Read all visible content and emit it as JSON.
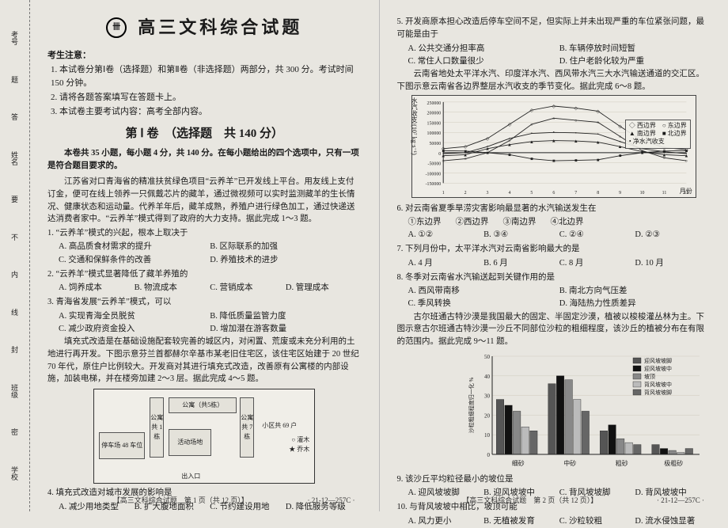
{
  "binding": {
    "labels": [
      "考号",
      "题",
      "答",
      "姓名",
      "要",
      "不",
      "内",
      "线",
      "封",
      "班级",
      "密",
      "学校"
    ]
  },
  "header": {
    "logo_text": "卌",
    "main_title": "高三文科综合试题"
  },
  "notice": {
    "head": "考生注意：",
    "items": [
      "1. 本试卷分第Ⅰ卷（选择题）和第Ⅱ卷（非选择题）两部分，共 300 分。考试时间 150 分钟。",
      "2. 请将各题答案填写在答题卡上。",
      "3. 本试卷主要考试内容：高考全部内容。"
    ]
  },
  "section1": {
    "title": "第 Ⅰ 卷　（选择题　共 140 分）",
    "intro": "本卷共 35 小题，每小题 4 分，共 140 分。在每小题给出的四个选项中，只有一项是符合题目要求的。"
  },
  "passage1": "江苏省对口青海省的精准扶贫绿色项目“云养羊”已开发线上平台。用友线上支付订金，便可在线上领养一只佩戴芯片的藏羊，通过微视频可以实时监测藏羊的生长情况、健康状态和运动量。代养羊年后，藏羊成熟，养殖户进行绿色加工，通过快递送达消费者家中。“云养羊”模式得到了政府的大力支持。据此完成 1～3 题。",
  "q1": {
    "text": "1. “云养羊”模式的兴起，根本上取决于",
    "opts": [
      "A. 高品质食材需求的提升",
      "B. 区际联系的加强",
      "C. 交通和保鲜条件的改善",
      "D. 养殖技术的进步"
    ]
  },
  "q2": {
    "text": "2. “云养羊”模式显著降低了藏羊养殖的",
    "opts": [
      "A. 饲养成本",
      "B. 物流成本",
      "C. 营销成本",
      "D. 管理成本"
    ]
  },
  "q3": {
    "text": "3. 青海省发展“云养羊”模式，可以",
    "opts": [
      "A. 实现青海全员脱贫",
      "B. 降低质量监管力度",
      "C. 减少政府资金投入",
      "D. 增加潜在游客数量"
    ]
  },
  "passage2": "填充式改造是在基础设施配套较完善的城区内，对闲置、荒废或未充分利用的土地进行再开发。下图示意芬兰首都赫尔辛基市某老旧住宅区，该住宅区始建于 20 世纪 70 年代，原住户比例较大。开发商对其进行填充式改造，改善原有公寓楼的内部设施，加装电梯，并在楼旁加建 2～3 层。据此完成 4～5 题。",
  "map": {
    "blocks": {
      "busstop": "停车场\n48 车位",
      "apt1": "公寓\n共\n1\n栋",
      "play": "活动场地",
      "apt2": "公寓（共5栋）",
      "apt3": "公寓\n共\n7\n栋",
      "info": "小区共 69 户"
    },
    "legend": [
      "○ 灌木",
      "★ 乔木"
    ],
    "inout": "出入口"
  },
  "q4": {
    "text": "4. 填充式改造对城市发展的影响是",
    "opts": [
      "A. 减少用地类型",
      "B. 扩大腹地面积",
      "C. 节约建设用地",
      "D. 降低服务等级"
    ]
  },
  "q5": {
    "text": "5. 开发商原本担心改造后停车空间不足，但实际上并未出现严重的车位紧张问题，最可能是由于",
    "opts": [
      "A. 公共交通分担率高",
      "B. 车辆停放时间短暂",
      "C. 常住人口数量很少",
      "D. 住户老龄化较为严重"
    ]
  },
  "passage3": "云南省地处太平洋水汽、印度洋水汽、西风带水汽三大水汽输送通道的交汇区。下图示意云南省各边界整层水汽收支的季节变化。据此完成 6～8 题。",
  "linechart": {
    "ylabel": "水汽收支/(10⁷ kg·s⁻¹)",
    "xlabel": "月份",
    "ylim": [
      -150000,
      250000
    ],
    "yticks": [
      -150000,
      -100000,
      -50000,
      0,
      50000,
      100000,
      150000,
      200000,
      250000
    ],
    "xticks": [
      1,
      2,
      3,
      4,
      5,
      6,
      7,
      8,
      9,
      10,
      11,
      12
    ],
    "series": [
      {
        "name": "西边界",
        "marker": "diamond",
        "values": [
          20000,
          30000,
          70000,
          140000,
          210000,
          230000,
          220000,
          205000,
          130000,
          60000,
          25000,
          15000
        ]
      },
      {
        "name": "东边界",
        "marker": "circle-open",
        "values": [
          -40000,
          -30000,
          0,
          60000,
          140000,
          170000,
          160000,
          150000,
          80000,
          10000,
          -25000,
          -40000
        ]
      },
      {
        "name": "南边界",
        "marker": "triangle",
        "values": [
          -15000,
          -10000,
          20000,
          40000,
          55000,
          60000,
          58000,
          52000,
          30000,
          5000,
          -10000,
          -15000
        ]
      },
      {
        "name": "北边界",
        "marker": "square",
        "values": [
          10000,
          8000,
          0,
          -10000,
          -30000,
          -40000,
          -38000,
          -35000,
          -15000,
          0,
          8000,
          10000
        ]
      },
      {
        "name": "净水汽收支",
        "marker": "dot",
        "values": [
          -5000,
          0,
          30000,
          70000,
          95000,
          100000,
          98000,
          92000,
          55000,
          20000,
          5000,
          -5000
        ]
      }
    ],
    "line_color": "#222",
    "grid_color": "#cfcabd",
    "background": "#efede7"
  },
  "q6": {
    "text": "6. 对云南省夏季旱涝灾害影响最显著的水汽输送发生在",
    "circled": [
      "①东边界",
      "②西边界",
      "③南边界",
      "④北边界"
    ],
    "opts": [
      "A. ①②",
      "B. ③④",
      "C. ②④",
      "D. ②③"
    ]
  },
  "q7": {
    "text": "7. 下列月份中，太平洋水汽对云南省影响最大的是",
    "opts": [
      "A. 4 月",
      "B. 6 月",
      "C. 8 月",
      "D. 10 月"
    ]
  },
  "q8": {
    "text": "8. 冬季对云南省水汽输送起到关键作用的是",
    "opts": [
      "A. 西风带南移",
      "B. 南北方向气压差",
      "C. 季风转换",
      "D. 海陆热力性质差异"
    ]
  },
  "passage4": "古尔班通古特沙漠是我国最大的固定、半固定沙漠，植被以梭梭灌丛林为主。下图示意古尔班通古特沙漠一沙丘不同部位沙粒的粗细程度，该沙丘的植被分布在有限的范围内。据此完成 9～11 题。",
  "barchart": {
    "categories": [
      "细砂",
      "中砂",
      "粗砂",
      "极粗砂"
    ],
    "series": [
      {
        "name": "迎风坡坡脚",
        "pattern": "diag",
        "values": [
          28,
          36,
          12,
          5
        ]
      },
      {
        "name": "迎风坡坡中",
        "pattern": "solid",
        "values": [
          25,
          40,
          15,
          3
        ]
      },
      {
        "name": "坡顶",
        "pattern": "horiz",
        "values": [
          22,
          38,
          8,
          2
        ]
      },
      {
        "name": "背风坡坡中",
        "pattern": "dots",
        "values": [
          14,
          28,
          6,
          1
        ]
      },
      {
        "name": "背风坡坡脚",
        "pattern": "grid",
        "values": [
          12,
          22,
          5,
          3
        ]
      }
    ],
    "ylabel": "沙粒粗细程度归一化 %",
    "ylim": [
      0,
      50
    ],
    "yticks": [
      0,
      10,
      20,
      30,
      40,
      50
    ],
    "bar_color": "#333",
    "background": "#efede7"
  },
  "q9": {
    "text": "9. 该沙丘平均粒径最小的坡位是",
    "opts": [
      "A. 迎风坡坡脚",
      "B. 迎风坡坡中",
      "C. 背风坡坡脚",
      "D. 背风坡坡中"
    ]
  },
  "q10": {
    "text": "10. 与背风坡坡中相比，坡顶可能",
    "opts": [
      "A. 风力更小",
      "B. 无植被发育",
      "C. 沙粒较粗",
      "D. 流水侵蚀显著"
    ]
  },
  "footer": {
    "left_center": "【高三文科综合试题　第 1 页（共 12 页）】",
    "left_code": "· 21-12—257C ·",
    "right_center": "【高三文科综合试题　第 2 页（共 12 页）】",
    "right_code": "· 21-12—257C ·"
  }
}
